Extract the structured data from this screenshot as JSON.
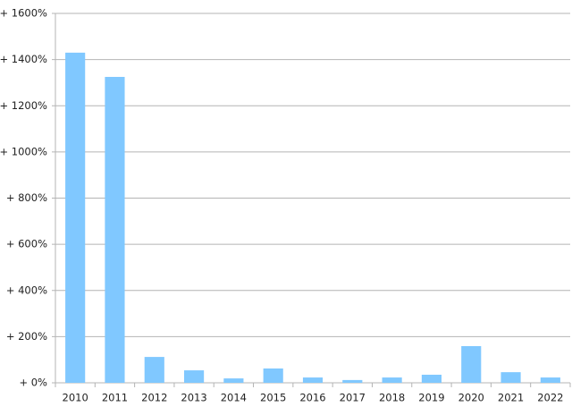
{
  "chart_data": {
    "type": "bar",
    "categories": [
      "2010",
      "2011",
      "2012",
      "2013",
      "2014",
      "2015",
      "2016",
      "2017",
      "2018",
      "2019",
      "2020",
      "2021",
      "2022"
    ],
    "values": [
      1430,
      1325,
      112,
      54,
      19,
      62,
      23,
      12,
      23,
      35,
      159,
      46,
      23
    ],
    "color": "#80c8ff",
    "ylim": [
      0,
      1600
    ],
    "yticks": [
      {
        "value": 0,
        "label": "+ 0%"
      },
      {
        "value": 200,
        "label": "+ 200%"
      },
      {
        "value": 400,
        "label": "+ 400%"
      },
      {
        "value": 600,
        "label": "+ 600%"
      },
      {
        "value": 800,
        "label": "+ 800%"
      },
      {
        "value": 1000,
        "label": "+ 1000%"
      },
      {
        "value": 1200,
        "label": "+ 1200%"
      },
      {
        "value": 1400,
        "label": "+ 1400%"
      },
      {
        "value": 1600,
        "label": "+ 1600%"
      }
    ],
    "grid": true
  }
}
